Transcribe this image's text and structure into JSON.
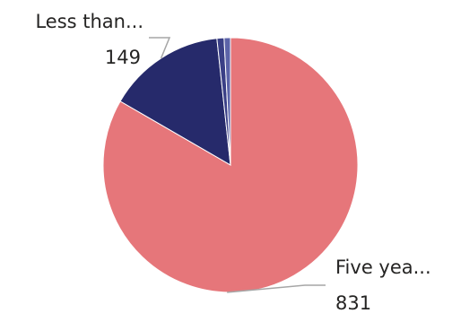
{
  "chart_data": {
    "type": "pie",
    "slices": [
      {
        "label": "Five yea...",
        "value": 831,
        "color": "#e6767a"
      },
      {
        "label": "Less than...",
        "value": 149,
        "color": "#262a6b"
      },
      {
        "label": "",
        "value": 9,
        "color": "#3a3f86"
      },
      {
        "label": "",
        "value": 8,
        "color": "#5c63a8"
      }
    ],
    "visible_labels": [
      {
        "slice": 1,
        "name": "Less than...",
        "value": "149"
      },
      {
        "slice": 0,
        "name": "Five yea...",
        "value": "831"
      }
    ],
    "legend": "none",
    "start_angle_deg": 0,
    "direction": "clockwise"
  }
}
